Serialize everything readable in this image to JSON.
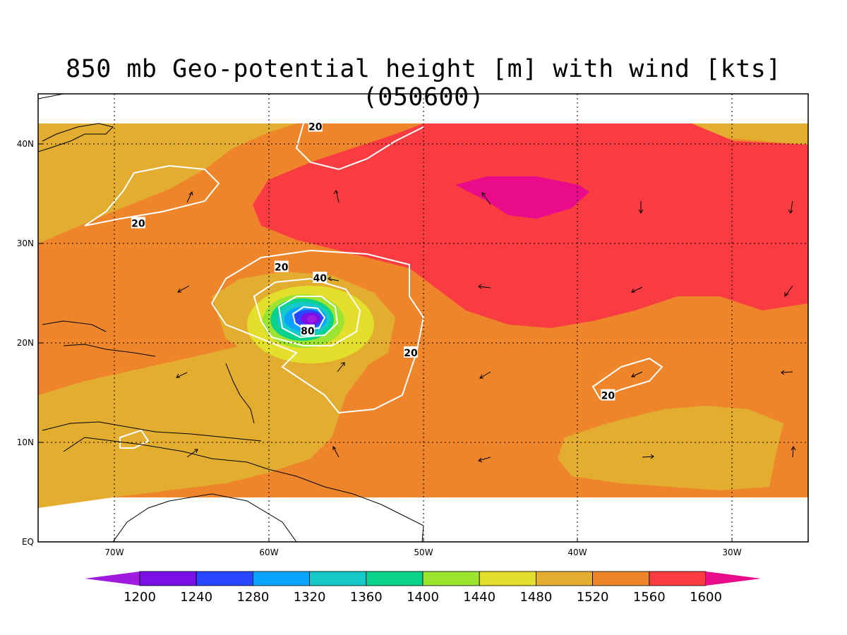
{
  "title": "850 mb Geo-potential height [m] with wind [kts] (050600)",
  "map": {
    "lon_range": [
      -75,
      -25
    ],
    "lat_range": [
      0,
      45
    ],
    "x_ticks": [
      {
        "lon": -70,
        "label": "70W"
      },
      {
        "lon": -60,
        "label": "60W"
      },
      {
        "lon": -50,
        "label": "50W"
      },
      {
        "lon": -40,
        "label": "40W"
      },
      {
        "lon": -30,
        "label": "30W"
      }
    ],
    "y_ticks": [
      {
        "lat": 0,
        "label": "EQ"
      },
      {
        "lat": 10,
        "label": "10N"
      },
      {
        "lat": 20,
        "label": "20N"
      },
      {
        "lat": 30,
        "label": "30N"
      },
      {
        "lat": 40,
        "label": "40N"
      }
    ],
    "grid": "dotted",
    "wind_contour_labels": [
      {
        "text": "20",
        "lon": -57,
        "lat": 41.7
      },
      {
        "text": "20",
        "lon": -68.5,
        "lat": 32.0
      },
      {
        "text": "20",
        "lon": -59.2,
        "lat": 27.6
      },
      {
        "text": "40",
        "lon": -56.7,
        "lat": 26.5
      },
      {
        "text": "80",
        "lon": -57.5,
        "lat": 21.2
      },
      {
        "text": "20",
        "lon": -50.8,
        "lat": 19.0
      },
      {
        "text": "20",
        "lon": -38.0,
        "lat": 14.7
      }
    ]
  },
  "colorbar": {
    "levels": [
      "1200",
      "1240",
      "1280",
      "1320",
      "1360",
      "1400",
      "1440",
      "1480",
      "1520",
      "1560",
      "1600"
    ],
    "colors": [
      "#a01ae0",
      "#7a10e6",
      "#2a46ff",
      "#0aa3ff",
      "#14c9c8",
      "#0bd28a",
      "#9de431",
      "#e4de2c",
      "#e3ad30",
      "#ef852a",
      "#f93c42",
      "#ea0b8a"
    ]
  }
}
